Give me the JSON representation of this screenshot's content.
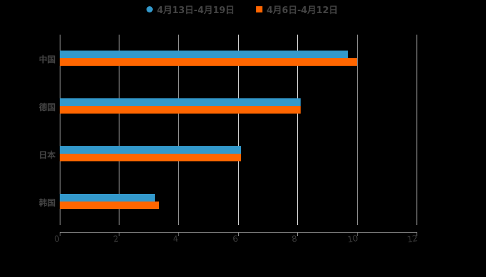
{
  "chart_data": {
    "type": "bar",
    "orientation": "horizontal",
    "title": "",
    "xlabel": "",
    "ylabel": "",
    "categories": [
      "中国",
      "德国",
      "日本",
      "韩国"
    ],
    "series": [
      {
        "name": "4月13日-4月19日",
        "color": "#3399CC",
        "marker": "circle",
        "values": [
          9.7,
          8.1,
          6.1,
          3.2
        ]
      },
      {
        "name": "4月6日-4月12日",
        "color": "#FF6600",
        "marker": "square",
        "values": [
          10.0,
          8.1,
          6.1,
          3.35
        ]
      }
    ],
    "xlim": [
      0,
      12
    ],
    "xticks": [
      "0",
      "2",
      "4",
      "6",
      "8",
      "10",
      "12"
    ],
    "grid": true,
    "legend_position": "top"
  },
  "legend": {
    "items": [
      {
        "label": "4月13日-4月19日",
        "color": "#3399CC"
      },
      {
        "label": "4月6日-4月12日",
        "color": "#FF6600"
      }
    ]
  },
  "axis": {
    "x_ticks": [
      "0",
      "2",
      "4",
      "6",
      "8",
      "10",
      "12"
    ]
  },
  "categories": [
    "中国",
    "德国",
    "日本",
    "韩国"
  ]
}
